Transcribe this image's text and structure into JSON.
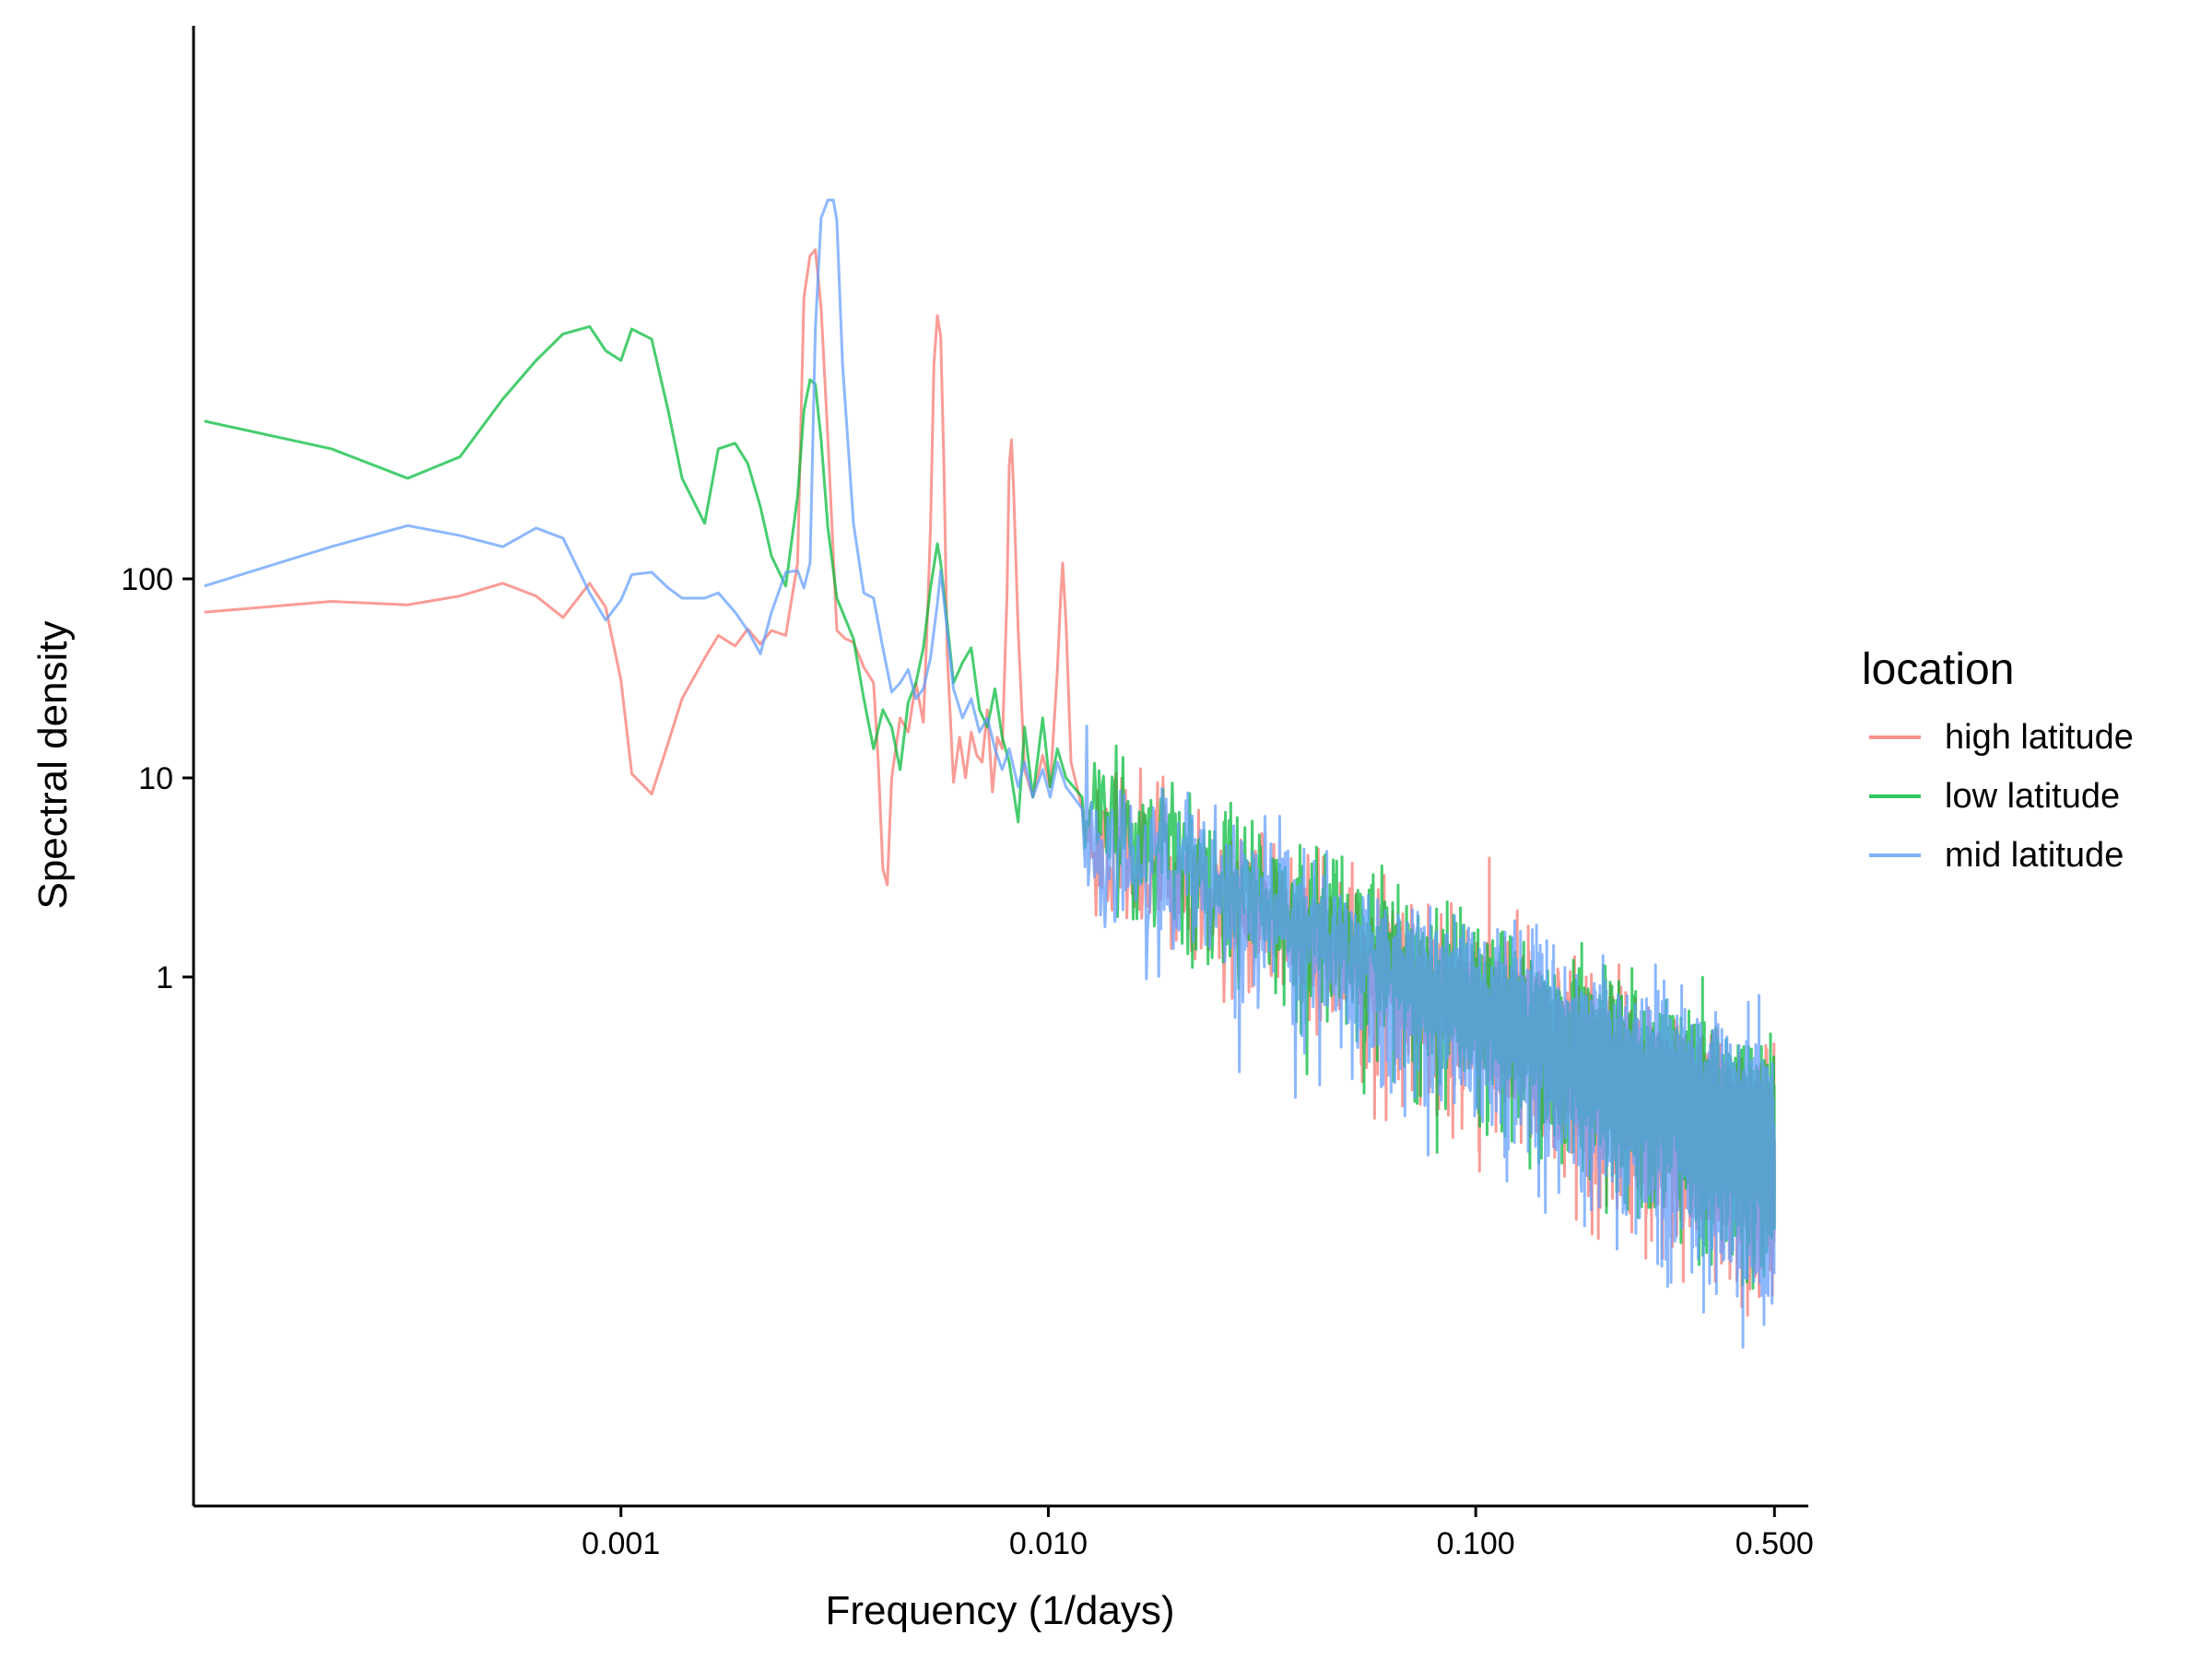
{
  "chart_data": {
    "type": "line",
    "title": "",
    "xlabel": "Frequency (1/days)",
    "ylabel": "Spectral density",
    "x_scale": "log10",
    "y_scale": "log10",
    "xlim": [
      0.0001,
      0.6
    ],
    "ylim": [
      0.0022,
      60000
    ],
    "x_ticks": [
      {
        "value": 0.001,
        "label": "0.001"
      },
      {
        "value": 0.01,
        "label": "0.010"
      },
      {
        "value": 0.1,
        "label": "0.100"
      },
      {
        "value": 0.5,
        "label": "0.500"
      }
    ],
    "y_ticks": [
      {
        "value": 1,
        "label": "1"
      },
      {
        "value": 10,
        "label": "10"
      },
      {
        "value": 100,
        "label": "100"
      }
    ],
    "grid": false,
    "legend": {
      "title": "location",
      "position": "right",
      "entries": [
        "high latitude",
        "low latitude",
        "mid latitude"
      ]
    },
    "series": [
      {
        "name": "high latitude",
        "color": "#F8766D",
        "anchors": [
          [
            0.000106,
            68
          ],
          [
            0.00021,
            77
          ],
          [
            0.000317,
            74
          ],
          [
            0.00042,
            82
          ],
          [
            0.000529,
            95
          ],
          [
            0.000633,
            82
          ],
          [
            0.000732,
            64
          ],
          [
            0.000845,
            95
          ],
          [
            0.000921,
            72
          ],
          [
            0.001,
            31
          ],
          [
            0.00106,
            10.5
          ],
          [
            0.00118,
            8.3
          ],
          [
            0.00129,
            15
          ],
          [
            0.00139,
            25
          ],
          [
            0.00157,
            40
          ],
          [
            0.00169,
            52
          ],
          [
            0.00185,
            46
          ],
          [
            0.00198,
            56
          ],
          [
            0.00212,
            47
          ],
          [
            0.00225,
            55
          ],
          [
            0.00243,
            52
          ],
          [
            0.00259,
            120
          ],
          [
            0.00268,
            2600
          ],
          [
            0.00277,
            4200
          ],
          [
            0.00285,
            4500
          ],
          [
            0.00294,
            2300
          ],
          [
            0.00305,
            500
          ],
          [
            0.0032,
            55
          ],
          [
            0.00335,
            50
          ],
          [
            0.0035,
            48
          ],
          [
            0.0037,
            36
          ],
          [
            0.0039,
            30
          ],
          [
            0.004,
            12
          ],
          [
            0.0041,
            3.5
          ],
          [
            0.0042,
            2.9
          ],
          [
            0.0043,
            10
          ],
          [
            0.0045,
            20
          ],
          [
            0.0047,
            17
          ],
          [
            0.0049,
            30
          ],
          [
            0.0051,
            19
          ],
          [
            0.0052,
            55
          ],
          [
            0.0053,
            180
          ],
          [
            0.0054,
            1200
          ],
          [
            0.0055,
            2100
          ],
          [
            0.0056,
            1650
          ],
          [
            0.0057,
            360
          ],
          [
            0.0058,
            42
          ],
          [
            0.006,
            9.5
          ],
          [
            0.0062,
            16
          ],
          [
            0.0064,
            10
          ],
          [
            0.0066,
            17
          ],
          [
            0.0068,
            13
          ],
          [
            0.007,
            12
          ],
          [
            0.0072,
            22
          ],
          [
            0.0074,
            8.5
          ],
          [
            0.0076,
            16
          ],
          [
            0.0078,
            14
          ],
          [
            0.008,
            80
          ],
          [
            0.0081,
            370
          ],
          [
            0.0082,
            500
          ],
          [
            0.0083,
            270
          ],
          [
            0.0085,
            55
          ],
          [
            0.0088,
            11
          ],
          [
            0.0092,
            8
          ],
          [
            0.0097,
            13
          ],
          [
            0.0101,
            9
          ],
          [
            0.0105,
            35
          ],
          [
            0.0107,
            85
          ],
          [
            0.0108,
            120
          ],
          [
            0.011,
            60
          ],
          [
            0.0113,
            12
          ],
          [
            0.012,
            7
          ]
        ],
        "tail_slope": -1.05,
        "noise": 2.1,
        "seed": 11
      },
      {
        "name": "low latitude",
        "color": "#00BA38",
        "anchors": [
          [
            0.000106,
            620
          ],
          [
            0.00021,
            450
          ],
          [
            0.000317,
            320
          ],
          [
            0.00042,
            410
          ],
          [
            0.000529,
            800
          ],
          [
            0.000633,
            1250
          ],
          [
            0.000732,
            1700
          ],
          [
            0.000845,
            1850
          ],
          [
            0.000921,
            1400
          ],
          [
            0.001,
            1250
          ],
          [
            0.00106,
            1800
          ],
          [
            0.00118,
            1600
          ],
          [
            0.00129,
            700
          ],
          [
            0.00139,
            320
          ],
          [
            0.00157,
            190
          ],
          [
            0.00169,
            450
          ],
          [
            0.00185,
            480
          ],
          [
            0.00198,
            380
          ],
          [
            0.00212,
            230
          ],
          [
            0.00225,
            130
          ],
          [
            0.00243,
            92
          ],
          [
            0.00259,
            260
          ],
          [
            0.00268,
            700
          ],
          [
            0.00277,
            1000
          ],
          [
            0.00285,
            950
          ],
          [
            0.00294,
            500
          ],
          [
            0.00305,
            180
          ],
          [
            0.0032,
            80
          ],
          [
            0.0035,
            50
          ],
          [
            0.0037,
            25
          ],
          [
            0.0039,
            14
          ],
          [
            0.0041,
            22
          ],
          [
            0.0043,
            18
          ],
          [
            0.0045,
            11
          ],
          [
            0.0047,
            24
          ],
          [
            0.0049,
            30
          ],
          [
            0.0051,
            45
          ],
          [
            0.0053,
            90
          ],
          [
            0.0055,
            150
          ],
          [
            0.0056,
            120
          ],
          [
            0.0058,
            60
          ],
          [
            0.006,
            30
          ],
          [
            0.0063,
            38
          ],
          [
            0.0066,
            45
          ],
          [
            0.0069,
            22
          ],
          [
            0.0072,
            18
          ],
          [
            0.0075,
            28
          ],
          [
            0.0078,
            16
          ],
          [
            0.0081,
            12
          ],
          [
            0.0085,
            6
          ],
          [
            0.0088,
            18
          ],
          [
            0.0092,
            8
          ],
          [
            0.0097,
            20
          ],
          [
            0.0101,
            9
          ],
          [
            0.0105,
            14
          ],
          [
            0.011,
            10
          ],
          [
            0.012,
            8
          ]
        ],
        "tail_slope": -1.05,
        "noise": 2.0,
        "seed": 23
      },
      {
        "name": "mid latitude",
        "color": "#619CFF",
        "anchors": [
          [
            0.000106,
            92
          ],
          [
            0.00021,
            145
          ],
          [
            0.000317,
            185
          ],
          [
            0.00042,
            165
          ],
          [
            0.000529,
            145
          ],
          [
            0.000633,
            180
          ],
          [
            0.000732,
            160
          ],
          [
            0.000845,
            85
          ],
          [
            0.000921,
            62
          ],
          [
            0.001,
            78
          ],
          [
            0.00106,
            105
          ],
          [
            0.00118,
            108
          ],
          [
            0.00129,
            90
          ],
          [
            0.00139,
            80
          ],
          [
            0.00157,
            80
          ],
          [
            0.00169,
            85
          ],
          [
            0.00185,
            68
          ],
          [
            0.00198,
            55
          ],
          [
            0.00212,
            42
          ],
          [
            0.00225,
            68
          ],
          [
            0.00243,
            108
          ],
          [
            0.00259,
            110
          ],
          [
            0.00268,
            90
          ],
          [
            0.00277,
            120
          ],
          [
            0.00285,
            1800
          ],
          [
            0.00294,
            6500
          ],
          [
            0.00305,
            8000
          ],
          [
            0.00314,
            8000
          ],
          [
            0.0032,
            6300
          ],
          [
            0.0033,
            1200
          ],
          [
            0.0035,
            190
          ],
          [
            0.0037,
            85
          ],
          [
            0.0039,
            80
          ],
          [
            0.0041,
            45
          ],
          [
            0.0043,
            27
          ],
          [
            0.0045,
            30
          ],
          [
            0.0047,
            35
          ],
          [
            0.0049,
            25
          ],
          [
            0.0051,
            28
          ],
          [
            0.0053,
            40
          ],
          [
            0.0055,
            75
          ],
          [
            0.0056,
            110
          ],
          [
            0.0058,
            55
          ],
          [
            0.006,
            28
          ],
          [
            0.0063,
            20
          ],
          [
            0.0066,
            25
          ],
          [
            0.0069,
            17
          ],
          [
            0.0072,
            20
          ],
          [
            0.0075,
            14
          ],
          [
            0.0078,
            11
          ],
          [
            0.0081,
            14
          ],
          [
            0.0085,
            9
          ],
          [
            0.0088,
            12
          ],
          [
            0.0092,
            8
          ],
          [
            0.0097,
            11
          ],
          [
            0.0101,
            8
          ],
          [
            0.0105,
            12
          ],
          [
            0.011,
            9
          ],
          [
            0.012,
            7
          ]
        ],
        "tail_slope": -1.05,
        "noise": 2.3,
        "seed": 37
      }
    ]
  }
}
